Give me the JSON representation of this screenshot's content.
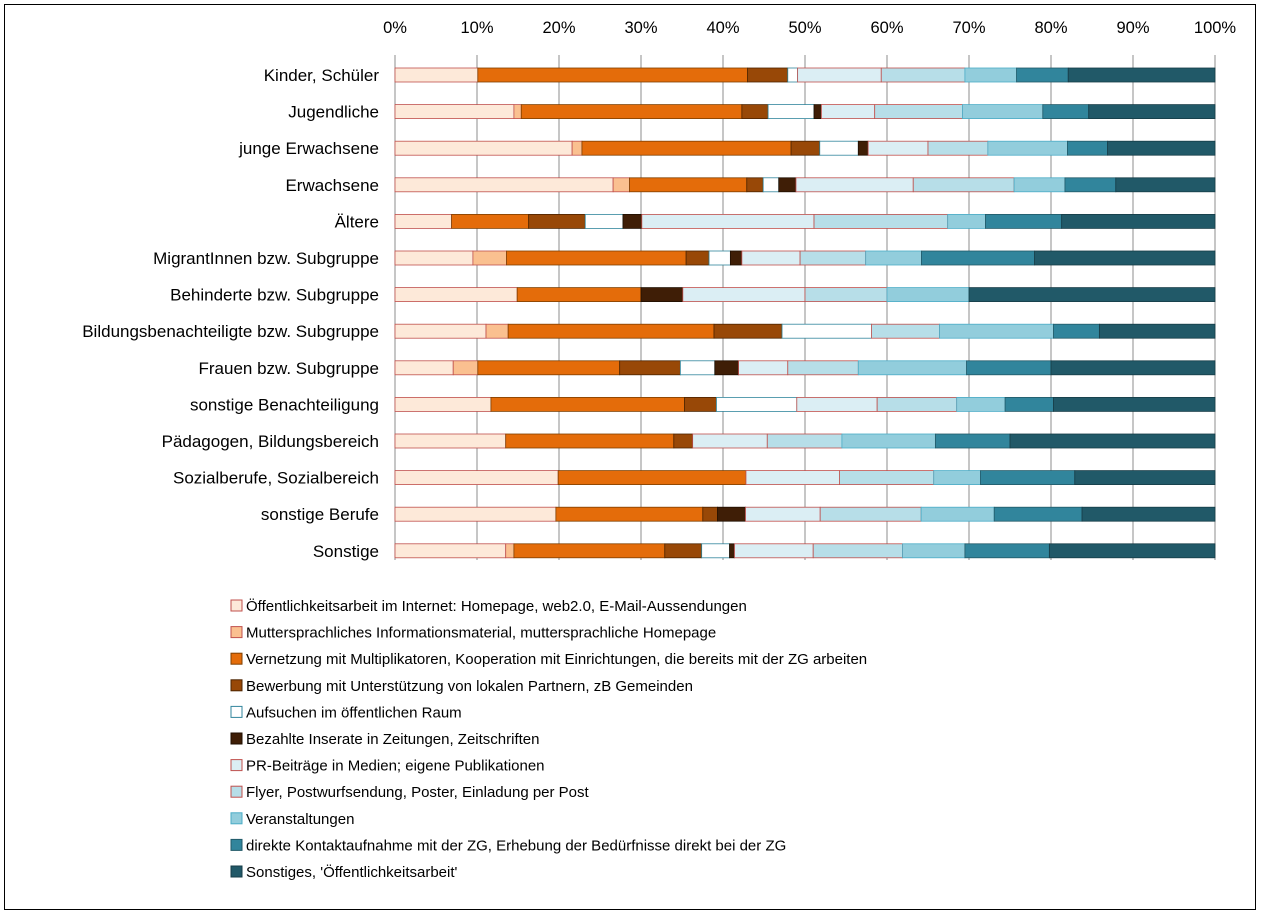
{
  "chart_data": {
    "type": "bar",
    "orientation": "horizontal",
    "stacked": "percent",
    "xlim": [
      0,
      100
    ],
    "x_ticks": [
      "0%",
      "10%",
      "20%",
      "30%",
      "40%",
      "50%",
      "60%",
      "70%",
      "80%",
      "90%",
      "100%"
    ],
    "x_axis_position": "top",
    "grid": true,
    "legend_position": "bottom",
    "categories": [
      "Kinder, Schüler",
      "Jugendliche",
      "junge Erwachsene",
      "Erwachsene",
      "Ältere",
      "MigrantInnen bzw. Subgruppe",
      "Behinderte bzw. Subgruppe",
      "Bildungsbenachteiligte bzw. Subgruppe",
      "Frauen bzw. Subgruppe",
      "sonstige Benachteiligung",
      "Pädagogen, Bildungsbereich",
      "Sozialberufe, Sozialbereich",
      "sonstige Berufe",
      "Sonstige"
    ],
    "series": [
      {
        "name": "Öffentlichkeitsarbeit im Internet: Homepage, web2.0, E-Mail-Aussendungen",
        "color": "#fde9d9",
        "stroke": "#c0504d",
        "values": [
          10.1,
          14.5,
          21.6,
          26.6,
          6.9,
          9.5,
          14.9,
          11.1,
          7.1,
          11.7,
          13.5,
          19.9,
          19.6,
          13.5
        ]
      },
      {
        "name": "Muttersprachliches Informationsmaterial, muttersprachliche Homepage",
        "color": "#fac090",
        "stroke": "#c0504d",
        "values": [
          0,
          0.9,
          1.2,
          2.0,
          0,
          4.1,
          0,
          2.7,
          3.0,
          0,
          0,
          0,
          0,
          1.0
        ]
      },
      {
        "name": "Vernetzung mit Multiplikatoren, Kooperation mit Einrichtungen, die bereits mit der ZG arbeiten",
        "color": "#e46c0a",
        "stroke": "#7f3f00",
        "values": [
          32.9,
          26.9,
          25.5,
          14.3,
          9.4,
          21.9,
          15.1,
          25.1,
          17.3,
          23.6,
          20.5,
          22.9,
          17.9,
          18.4
        ]
      },
      {
        "name": "Bewerbung mit Unterstützung von lokalen Partnern, zB Gemeinden",
        "color": "#984807",
        "stroke": "#4d2400",
        "values": [
          4.9,
          3.2,
          3.5,
          2.0,
          6.9,
          2.8,
          0,
          8.3,
          7.4,
          3.9,
          2.3,
          0,
          1.8,
          4.5
        ]
      },
      {
        "name": "Aufsuchen im öffentlichen Raum",
        "color": "#ffffff",
        "stroke": "#31859c",
        "values": [
          1.2,
          5.6,
          4.7,
          1.9,
          4.6,
          2.6,
          0,
          10.9,
          4.2,
          9.8,
          0,
          0,
          0,
          3.4
        ]
      },
      {
        "name": "Bezahlte Inserate in Zeitungen, Zeitschriften",
        "color": "#3f1e06",
        "stroke": "#1f0e00",
        "values": [
          0,
          0.9,
          1.2,
          2.1,
          2.3,
          1.4,
          5.1,
          0,
          2.9,
          0,
          0,
          0,
          3.4,
          0.6
        ]
      },
      {
        "name": "PR-Beiträge in Medien;  eigene Publikationen",
        "color": "#dbeef4",
        "stroke": "#c0504d",
        "values": [
          10.2,
          6.5,
          7.3,
          14.3,
          21.0,
          7.1,
          14.9,
          0,
          6.0,
          9.8,
          9.1,
          11.4,
          9.1,
          9.6
        ]
      },
      {
        "name": "Flyer, Postwurfsendung, Poster, Einladung per Post",
        "color": "#b7dee8",
        "stroke": "#c0504d",
        "values": [
          10.2,
          10.7,
          7.3,
          12.3,
          16.3,
          8.0,
          10.0,
          8.3,
          8.6,
          9.7,
          9.1,
          11.5,
          12.3,
          10.9
        ]
      },
      {
        "name": "Veranstaltungen",
        "color": "#92cddc",
        "stroke": "#4bacc6",
        "values": [
          6.3,
          9.8,
          9.7,
          6.2,
          4.6,
          6.8,
          10.0,
          13.9,
          13.2,
          5.9,
          11.4,
          5.7,
          8.9,
          7.6
        ]
      },
      {
        "name": "direkte Kontaktaufnahme mit der ZG, Erhebung der Bedürfnisse direkt bei der ZG",
        "color": "#31859c",
        "stroke": "#215968",
        "values": [
          6.3,
          5.6,
          4.9,
          6.2,
          9.3,
          13.8,
          0,
          5.6,
          10.3,
          5.9,
          9.1,
          11.5,
          10.7,
          10.3
        ]
      },
      {
        "name": "Sonstiges, 'Öffentlichkeitsarbeit'",
        "color": "#215968",
        "stroke": "#163c47",
        "values": [
          17.9,
          15.4,
          13.1,
          12.1,
          18.7,
          22.0,
          30.0,
          14.1,
          20.0,
          19.7,
          25.0,
          17.1,
          16.2,
          20.2
        ]
      }
    ]
  }
}
